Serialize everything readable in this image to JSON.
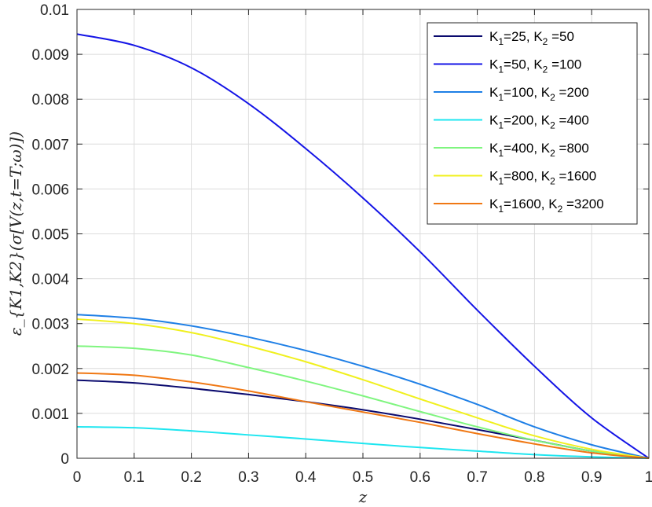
{
  "chart_data": {
    "type": "line",
    "title": "",
    "xlabel": "z",
    "ylabel": "ε_{K1,K2}(σ[V(z,t=T;ω)])",
    "xlim": [
      0,
      1
    ],
    "ylim": [
      0,
      0.01
    ],
    "grid": true,
    "legend_position": "top-right",
    "x_ticks": [
      "0",
      "0.1",
      "0.2",
      "0.3",
      "0.4",
      "0.5",
      "0.6",
      "0.7",
      "0.8",
      "0.9",
      "1"
    ],
    "y_ticks": [
      "0",
      "0.001",
      "0.002",
      "0.003",
      "0.004",
      "0.005",
      "0.006",
      "0.007",
      "0.008",
      "0.009",
      "0.01"
    ],
    "x": [
      0,
      0.1,
      0.2,
      0.3,
      0.4,
      0.5,
      0.6,
      0.7,
      0.8,
      0.9,
      1.0
    ],
    "series": [
      {
        "name": "K1=25, K2 =50",
        "sub1": "1",
        "sub2": "2",
        "k1": "25",
        "k2": "50",
        "color": "#0a0a6e",
        "values": [
          0.00174,
          0.00168,
          0.00156,
          0.00142,
          0.00126,
          0.00108,
          0.00087,
          0.00064,
          0.0004,
          0.00016,
          0
        ]
      },
      {
        "name": "K1=50, K2 =100",
        "sub1": "1",
        "sub2": "2",
        "k1": "50",
        "k2": "100",
        "color": "#1414e6",
        "values": [
          0.00945,
          0.0092,
          0.0087,
          0.0079,
          0.0069,
          0.0058,
          0.0046,
          0.0033,
          0.00205,
          0.0009,
          0
        ]
      },
      {
        "name": "K1=100, K2 =200",
        "sub1": "1",
        "sub2": "2",
        "k1": "100",
        "k2": "200",
        "color": "#1e7fe6",
        "values": [
          0.0032,
          0.00312,
          0.00295,
          0.0027,
          0.0024,
          0.00205,
          0.00165,
          0.0012,
          0.0007,
          0.0003,
          0
        ]
      },
      {
        "name": "K1=200, K2 =400",
        "sub1": "1",
        "sub2": "2",
        "k1": "200",
        "k2": "400",
        "color": "#1ee6f0",
        "values": [
          0.0007,
          0.00068,
          0.00061,
          0.00052,
          0.00043,
          0.00033,
          0.00024,
          0.00016,
          8e-05,
          3e-05,
          0
        ]
      },
      {
        "name": "K1=400, K2 =800",
        "sub1": "1",
        "sub2": "2",
        "k1": "400",
        "k2": "800",
        "color": "#7ff57f",
        "values": [
          0.0025,
          0.00245,
          0.0023,
          0.00202,
          0.00172,
          0.00139,
          0.00104,
          0.0007,
          0.0004,
          0.00016,
          0
        ]
      },
      {
        "name": "K1=800, K2 =1600",
        "sub1": "1",
        "sub2": "2",
        "k1": "800",
        "k2": "1600",
        "color": "#f0f01e",
        "values": [
          0.0031,
          0.003,
          0.0028,
          0.0025,
          0.00215,
          0.00175,
          0.00132,
          0.0009,
          0.0005,
          0.0002,
          0
        ]
      },
      {
        "name": "K1=1600, K2 =3200",
        "sub1": "1",
        "sub2": "2",
        "k1": "1600",
        "k2": "3200",
        "color": "#f07814",
        "values": [
          0.0019,
          0.00185,
          0.0017,
          0.0015,
          0.00126,
          0.00103,
          0.0008,
          0.00055,
          0.00032,
          0.00012,
          0
        ]
      }
    ]
  }
}
